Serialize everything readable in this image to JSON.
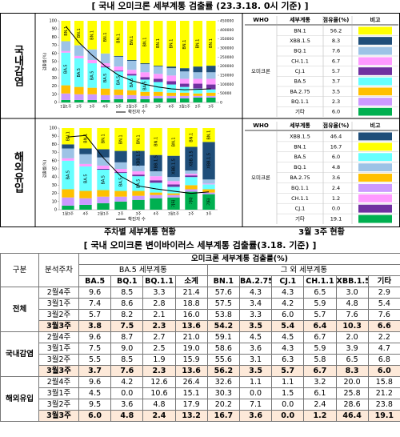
{
  "title": "[ 국내 오미크론 세부계통 검출률 (23.3.18. 0시 기준) ]",
  "panels": [
    {
      "label": "국내감염",
      "chart": {
        "type": "bar",
        "stacked": true,
        "ylabel": "검출률(%)",
        "categories": [
          "1월1주",
          "2주",
          "3주",
          "4주",
          "5주",
          "2월1주",
          "2주",
          "3주",
          "4주",
          "3월1주",
          "2주",
          "3주"
        ],
        "series": [
          {
            "name": "기타",
            "color": "#00b050",
            "values": [
              3,
              3,
              3,
              3,
              4,
              4,
              4,
              5,
              5,
              5,
              6,
              6
            ]
          },
          {
            "name": "BQ.1.1",
            "color": "#cc99ff",
            "values": [
              8,
              7,
              7,
              6,
              5,
              5,
              4,
              3,
              3,
              3,
              2,
              2
            ]
          },
          {
            "name": "BA.2.75",
            "color": "#ffc000",
            "values": [
              10,
              9,
              8,
              8,
              7,
              6,
              5,
              5,
              4,
              4,
              3,
              4
            ]
          },
          {
            "name": "BA.5",
            "color": "#66ffff",
            "values": [
              40,
              35,
              30,
              26,
              22,
              18,
              15,
              12,
              10,
              7,
              6,
              4
            ]
          },
          {
            "name": "CJ.1",
            "color": "#7030a0",
            "values": [
              0,
              0,
              0,
              1,
              1,
              2,
              3,
              4,
              4,
              4,
              6,
              6
            ]
          },
          {
            "name": "CH.1.1",
            "color": "#ff99ff",
            "values": [
              2,
              3,
              4,
              4,
              5,
              5,
              6,
              6,
              7,
              6,
              6,
              7
            ]
          },
          {
            "name": "BQ.1",
            "color": "#9dc3e6",
            "values": [
              12,
              13,
              13,
              12,
              12,
              11,
              10,
              9,
              9,
              9,
              8,
              8
            ]
          },
          {
            "name": "XBB.1.5",
            "color": "#1f4e79",
            "values": [
              0,
              0,
              0,
              0,
              1,
              1,
              1,
              1,
              2,
              4,
              7,
              8
            ]
          },
          {
            "name": "BN.1",
            "color": "#ffff00",
            "values": [
              25,
              30,
              35,
              40,
              43,
              48,
              52,
              55,
              56,
              58,
              56,
              55
            ]
          }
        ],
        "ylim": [
          0,
          100
        ],
        "yticks": [
          0,
          10,
          20,
          30,
          40,
          50,
          60,
          70,
          80,
          90,
          100
        ],
        "y2lim": [
          0,
          450000
        ],
        "y2ticks": [
          0,
          50000,
          100000,
          150000,
          200000,
          250000,
          300000,
          350000,
          400000,
          450000
        ],
        "line": {
          "name": "확진자 수",
          "color": "#000000",
          "axis": "y2",
          "values": [
            420000,
            330000,
            260000,
            200000,
            150000,
            120000,
            100000,
            85000,
            75000,
            70000,
            72000,
            75000
          ]
        }
      },
      "table": {
        "columns": [
          "WHO",
          "세부계통",
          "점유율(%)",
          "비고"
        ],
        "group": "오미크론",
        "rows": [
          {
            "name": "BN.1",
            "share": "56.2",
            "color": "#ffff00"
          },
          {
            "name": "XBB.1.5",
            "share": "8.3",
            "color": "#1f4e79"
          },
          {
            "name": "BQ.1",
            "share": "7.6",
            "color": "#9dc3e6"
          },
          {
            "name": "CH.1.1",
            "share": "6.7",
            "color": "#ff99ff"
          },
          {
            "name": "CJ.1",
            "share": "5.7",
            "color": "#7030a0"
          },
          {
            "name": "BA.5",
            "share": "3.7",
            "color": "#66ffff"
          },
          {
            "name": "BA.2.75",
            "share": "3.5",
            "color": "#ffc000"
          },
          {
            "name": "BQ.1.1",
            "share": "2.3",
            "color": "#cc99ff"
          },
          {
            "name": "기타",
            "share": "6.0",
            "color": "#00b050"
          }
        ]
      }
    },
    {
      "label": "해외유입",
      "chart": {
        "type": "bar",
        "stacked": true,
        "ylabel": "검출률(%)",
        "categories": [
          "1월3주",
          "4주",
          "2월1주",
          "2주",
          "3주",
          "4주",
          "3월1주",
          "2주",
          "3주"
        ],
        "series": [
          {
            "name": "기타",
            "color": "#00b050",
            "values": [
              5,
              6,
              8,
              10,
              12,
              14,
              15,
              22,
              19
            ]
          },
          {
            "name": "BQ.1.1",
            "color": "#cc99ff",
            "values": [
              10,
              8,
              8,
              6,
              5,
              4,
              3,
              3,
              2
            ]
          },
          {
            "name": "BA.2.75",
            "color": "#ffc000",
            "values": [
              10,
              9,
              8,
              7,
              6,
              3,
              2,
              5,
              4
            ]
          },
          {
            "name": "BA.5",
            "color": "#66ffff",
            "values": [
              35,
              30,
              25,
              22,
              18,
              12,
              8,
              10,
              6
            ]
          },
          {
            "name": "CJ.1",
            "color": "#7030a0",
            "values": [
              0,
              0,
              1,
              1,
              2,
              3,
              3,
              2,
              0
            ]
          },
          {
            "name": "CH.1.1",
            "color": "#ff99ff",
            "values": [
              3,
              3,
              4,
              4,
              4,
              5,
              4,
              2,
              1
            ]
          },
          {
            "name": "BQ.1",
            "color": "#9dc3e6",
            "values": [
              12,
              12,
              10,
              8,
              7,
              6,
              5,
              4,
              5
            ]
          },
          {
            "name": "XBB.1.5",
            "color": "#1f4e79",
            "values": [
              5,
              7,
              10,
              14,
              18,
              20,
              26,
              29,
              46
            ]
          },
          {
            "name": "BN.1",
            "color": "#ffff00",
            "values": [
              20,
              25,
              26,
              28,
              28,
              33,
              34,
              23,
              17
            ]
          }
        ],
        "ylim": [
          0,
          100
        ],
        "yticks": [
          0,
          10,
          20,
          30,
          40,
          50,
          60,
          70,
          80,
          90,
          100
        ],
        "y2lim": [
          0,
          110
        ],
        "line": {
          "name": "확진자 수",
          "color": "#000000",
          "axis": "y2",
          "values": [
            98,
            100,
            70,
            45,
            32,
            28,
            25,
            22,
            24
          ]
        }
      },
      "table": {
        "columns": [
          "WHO",
          "세부계통",
          "점유율(%)",
          "비고"
        ],
        "group": "오미크론",
        "rows": [
          {
            "name": "XBB.1.5",
            "share": "46.4",
            "color": "#1f4e79"
          },
          {
            "name": "BN.1",
            "share": "16.7",
            "color": "#ffff00"
          },
          {
            "name": "BA.5",
            "share": "6.0",
            "color": "#66ffff"
          },
          {
            "name": "BQ.1",
            "share": "4.8",
            "color": "#9dc3e6"
          },
          {
            "name": "BA.2.75",
            "share": "3.6",
            "color": "#ffc000"
          },
          {
            "name": "BQ.1.1",
            "share": "2.4",
            "color": "#cc99ff"
          },
          {
            "name": "CH.1.1",
            "share": "1.2",
            "color": "#ff99ff"
          },
          {
            "name": "CJ.1",
            "share": "0.0",
            "color": "#7030a0"
          },
          {
            "name": "기타",
            "share": "19.1",
            "color": "#00b050"
          }
        ]
      }
    }
  ],
  "captions": [
    "주차별 세부계통 현황",
    "3월 3주 현황"
  ],
  "table_title": "[ 국내 오미크론 변이바이러스 세부계통 검출률(3.18. 기준) ]",
  "table": {
    "header": {
      "group": "구분",
      "week": "분석주차",
      "main": "오미크론 세부계통 검출률(%)",
      "sub": [
        "BA.5 세부계통",
        "그 외 세부계통"
      ],
      "columns": [
        "BA.5",
        "BQ.1",
        "BQ.1.1",
        "소계",
        "BN.1",
        "BA.2.75",
        "CJ.1",
        "CH.1.1",
        "XBB.1.5",
        "기타"
      ]
    },
    "groups": [
      {
        "name": "전체",
        "rows": [
          {
            "week": "2월4주",
            "values": [
              "9.6",
              "8.5",
              "3.3",
              "21.4",
              "57.6",
              "4.3",
              "4.3",
              "6.5",
              "3.0",
              "2.9"
            ]
          },
          {
            "week": "3월1주",
            "values": [
              "7.4",
              "8.6",
              "2.8",
              "18.8",
              "57.5",
              "3.4",
              "4.2",
              "5.9",
              "4.8",
              "5.4"
            ]
          },
          {
            "week": "3월2주",
            "values": [
              "5.7",
              "8.2",
              "2.1",
              "16.0",
              "53.8",
              "3.3",
              "6.0",
              "5.7",
              "7.6",
              "7.6"
            ]
          },
          {
            "week": "3월3주",
            "values": [
              "3.8",
              "7.5",
              "2.3",
              "13.6",
              "54.2",
              "3.5",
              "5.4",
              "6.4",
              "10.3",
              "6.6"
            ]
          }
        ]
      },
      {
        "name": "국내감염",
        "rows": [
          {
            "week": "2월4주",
            "values": [
              "9.6",
              "8.7",
              "2.7",
              "21.0",
              "59.1",
              "4.5",
              "4.5",
              "6.7",
              "2.0",
              "2.2"
            ]
          },
          {
            "week": "3월1주",
            "values": [
              "7.5",
              "9.0",
              "2.5",
              "19.0",
              "58.6",
              "3.6",
              "4.3",
              "5.9",
              "3.9",
              "4.7"
            ]
          },
          {
            "week": "3월2주",
            "values": [
              "5.5",
              "8.5",
              "1.9",
              "15.9",
              "55.6",
              "3.1",
              "6.3",
              "5.8",
              "6.5",
              "6.8"
            ]
          },
          {
            "week": "3월3주",
            "values": [
              "3.7",
              "7.6",
              "2.3",
              "13.6",
              "56.2",
              "3.5",
              "5.7",
              "6.7",
              "8.3",
              "6.0"
            ]
          }
        ]
      },
      {
        "name": "해외유입",
        "rows": [
          {
            "week": "2월4주",
            "values": [
              "9.6",
              "4.2",
              "12.6",
              "26.4",
              "32.6",
              "1.1",
              "1.1",
              "3.2",
              "20.0",
              "15.8"
            ]
          },
          {
            "week": "3월1주",
            "values": [
              "4.5",
              "0.0",
              "10.6",
              "15.1",
              "30.3",
              "0.0",
              "1.5",
              "6.1",
              "25.8",
              "21.2"
            ]
          },
          {
            "week": "3월2주",
            "values": [
              "9.5",
              "3.6",
              "4.8",
              "17.9",
              "20.2",
              "7.1",
              "0.0",
              "2.4",
              "28.6",
              "23.8"
            ]
          },
          {
            "week": "3월3주",
            "values": [
              "6.0",
              "4.8",
              "2.4",
              "13.2",
              "16.7",
              "3.6",
              "0.0",
              "1.2",
              "46.4",
              "19.1"
            ]
          }
        ]
      }
    ]
  }
}
